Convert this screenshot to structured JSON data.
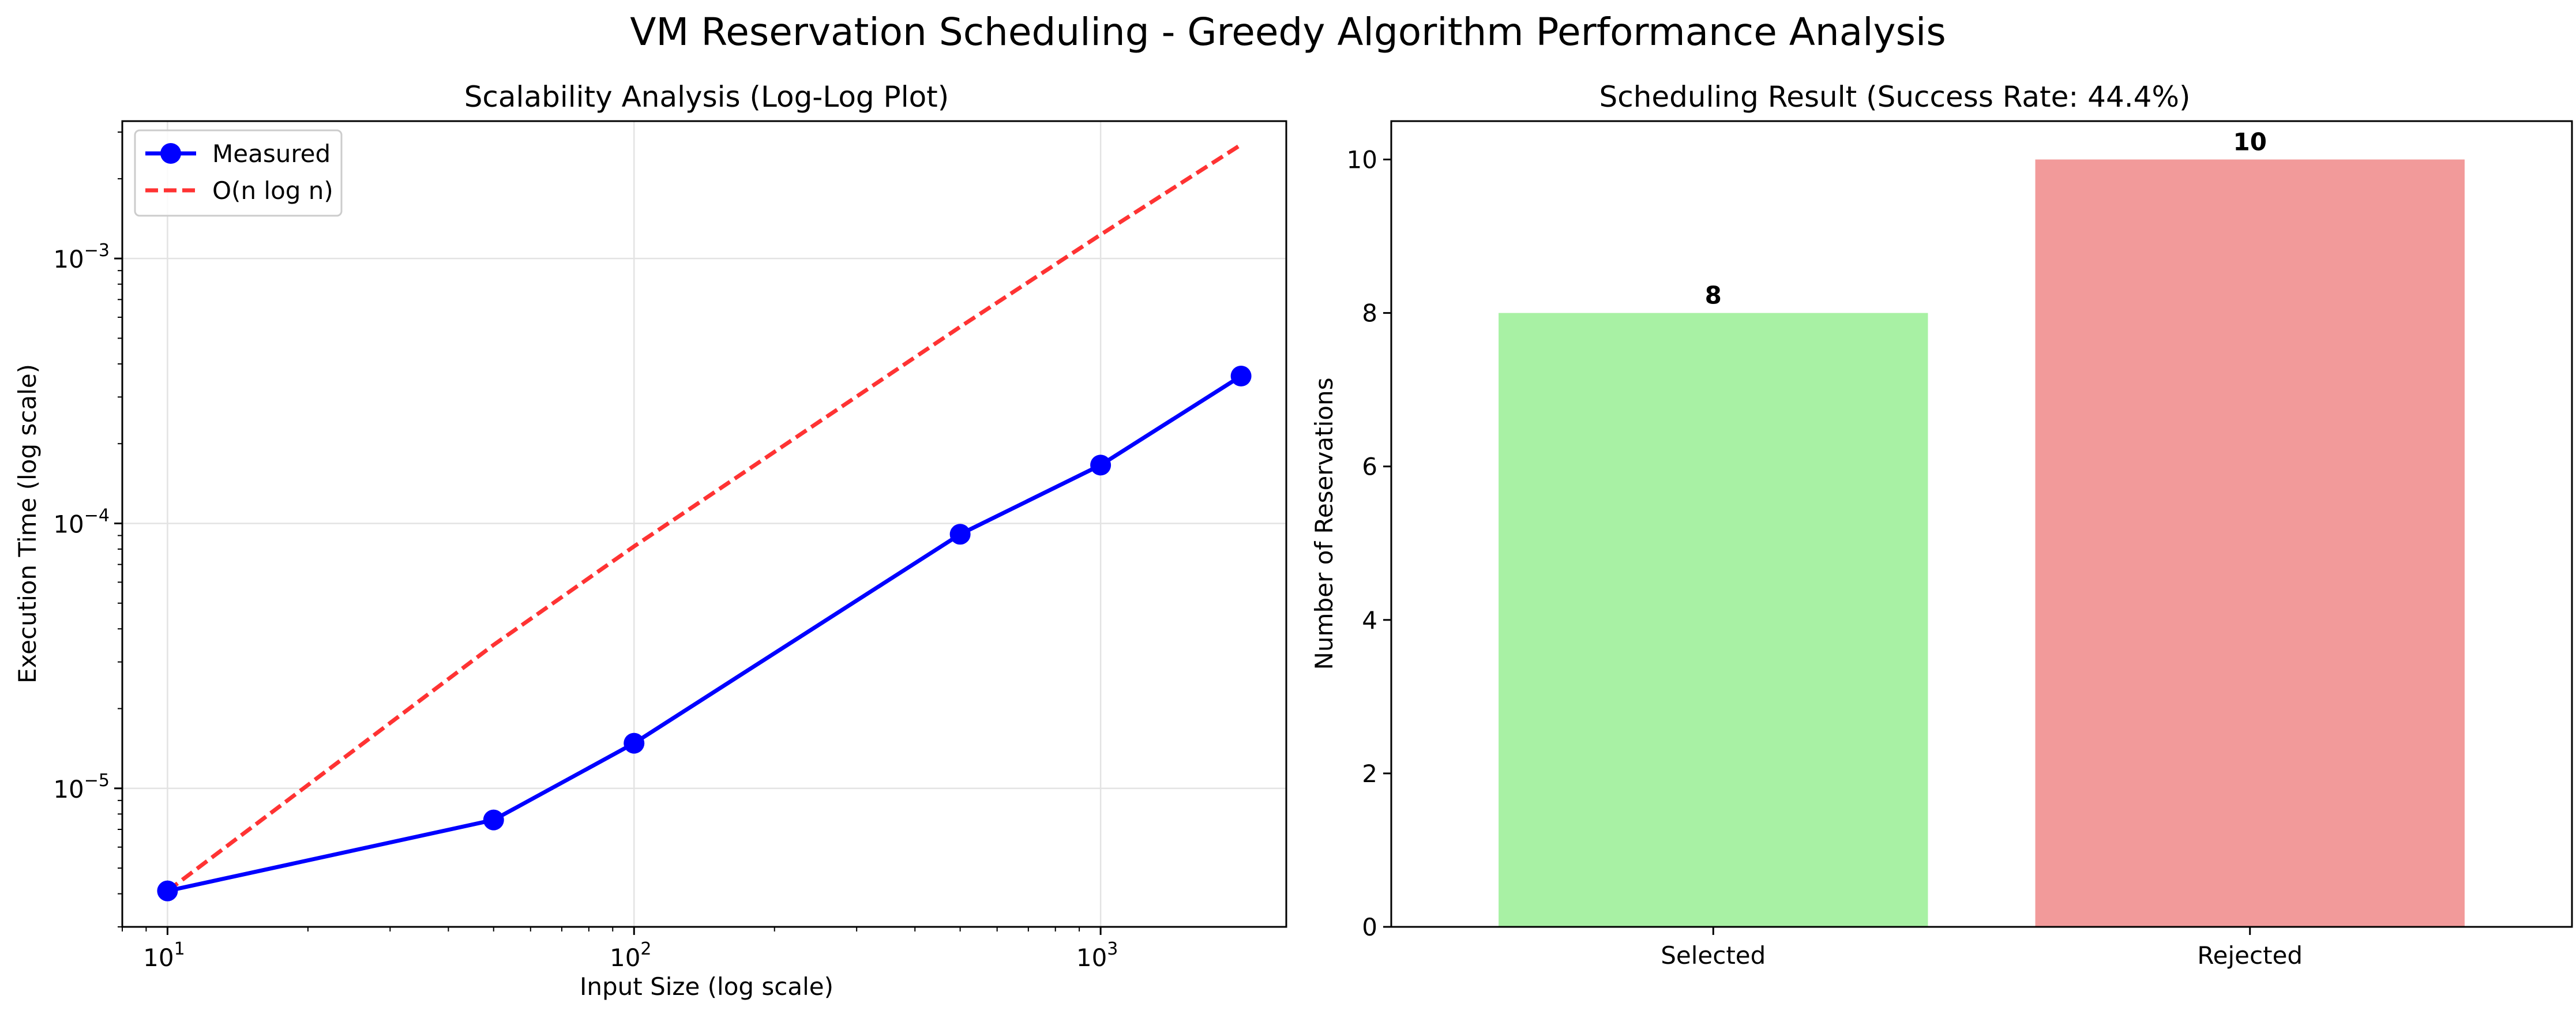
{
  "figure": {
    "title": "VM Reservation Scheduling - Greedy Algorithm Performance Analysis"
  },
  "chart_data": [
    {
      "type": "line",
      "title": "Scalability Analysis (Log-Log Plot)",
      "xlabel": "Input Size (log scale)",
      "ylabel": "Execution Time (log scale)",
      "xscale": "log",
      "yscale": "log",
      "xlim": [
        8,
        2500
      ],
      "ylim": [
        3e-06,
        0.0033
      ],
      "grid": true,
      "legend_position": "top-left",
      "x_ticks": [
        {
          "value": 10,
          "base": "10",
          "exp": "1"
        },
        {
          "value": 100,
          "base": "10",
          "exp": "2"
        },
        {
          "value": 1000,
          "base": "10",
          "exp": "3"
        }
      ],
      "y_ticks": [
        {
          "value": 1e-05,
          "base": "10",
          "exp": "−5"
        },
        {
          "value": 0.0001,
          "base": "10",
          "exp": "−4"
        },
        {
          "value": 0.001,
          "base": "10",
          "exp": "−3"
        }
      ],
      "series": [
        {
          "name": "Measured",
          "color": "#0000ff",
          "style": "solid",
          "marker": "circle",
          "x": [
            10,
            50,
            100,
            500,
            1000,
            2000
          ],
          "y": [
            4.1e-06,
            7.6e-06,
            1.48e-05,
            9.1e-05,
            0.000166,
            0.00036
          ]
        },
        {
          "name": "O(n log n)",
          "color": "#ff0000",
          "style": "dashed",
          "marker": "none",
          "x": [
            10,
            50,
            100,
            500,
            1000,
            2000
          ],
          "y": [
            4.1e-06,
            3.48e-05,
            8.19e-05,
            0.000552,
            0.00123,
            0.00269
          ]
        }
      ]
    },
    {
      "type": "bar",
      "title": "Scheduling Result (Success Rate: 44.4%)",
      "xlabel": "",
      "ylabel": "Number of Reservations",
      "ylim": [
        0,
        10.5
      ],
      "grid": false,
      "y_ticks": [
        0,
        2,
        4,
        6,
        8,
        10
      ],
      "categories": [
        "Selected",
        "Rejected"
      ],
      "values": [
        8,
        10
      ],
      "colors": [
        "#a8f1a4",
        "#f29a9a"
      ],
      "value_labels": [
        "8",
        "10"
      ]
    }
  ]
}
